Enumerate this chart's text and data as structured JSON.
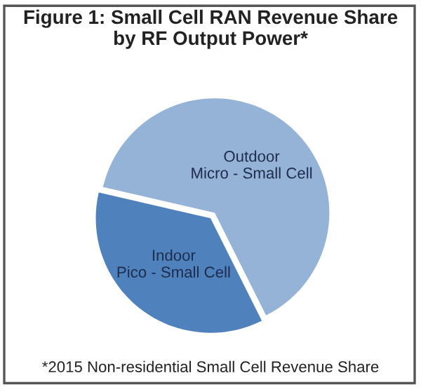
{
  "chart_data": {
    "type": "pie",
    "title": "Figure 1: Small Cell RAN Revenue Share\nby RF Output Power*",
    "categories": [
      "Outdoor\nMicro - Small Cell",
      "Indoor\nPico - Small Cell"
    ],
    "values": [
      64,
      36
    ],
    "colors": [
      "#95b3d7",
      "#4f81bd"
    ],
    "annotations": [
      "*2015 Non-residential Small Cell Revenue Share"
    ]
  }
}
